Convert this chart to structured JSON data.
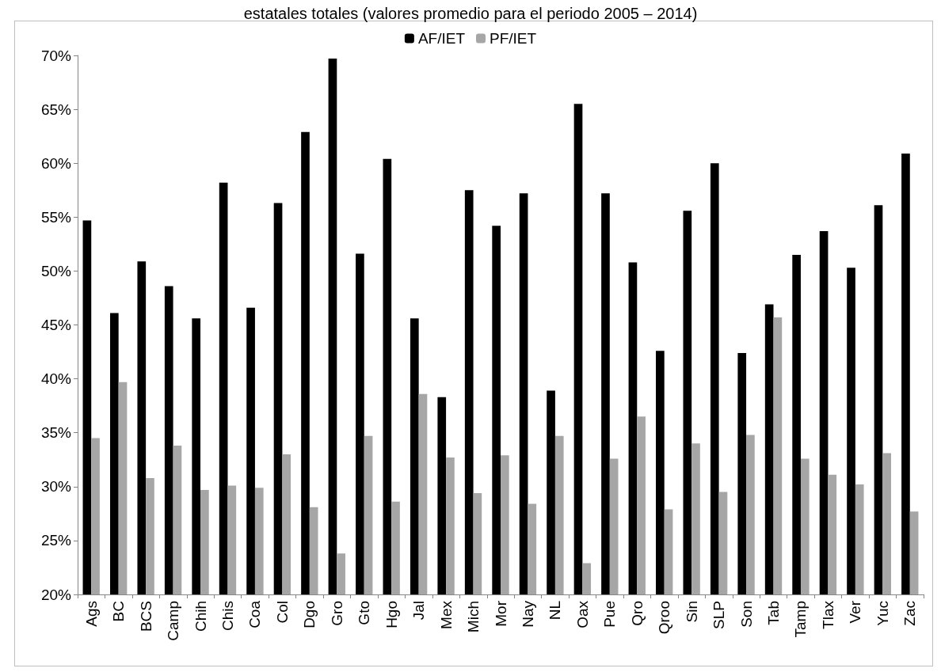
{
  "chart_data": {
    "type": "bar",
    "title": "estatales totales (valores promedio para el periodo 2005 – 2014)",
    "categories": [
      "Ags",
      "BC",
      "BCS",
      "Camp",
      "Chih",
      "Chis",
      "Coa",
      "Col",
      "Dgo",
      "Gro",
      "Gto",
      "Hgo",
      "Jal",
      "Mex",
      "Mich",
      "Mor",
      "Nay",
      "NL",
      "Oax",
      "Pue",
      "Qro",
      "Qroo",
      "Sin",
      "SLP",
      "Son",
      "Tab",
      "Tamp",
      "Tlax",
      "Ver",
      "Yuc",
      "Zac"
    ],
    "series": [
      {
        "name": "AF/IET",
        "color": "#000000",
        "values": [
          54.7,
          46.1,
          50.9,
          48.6,
          45.6,
          58.2,
          46.6,
          56.3,
          62.9,
          69.7,
          51.6,
          60.4,
          45.6,
          38.3,
          57.5,
          54.2,
          57.2,
          38.9,
          65.5,
          57.2,
          50.8,
          42.6,
          55.6,
          60.0,
          42.4,
          46.9,
          51.5,
          53.7,
          50.3,
          56.1,
          60.9
        ]
      },
      {
        "name": "PF/IET",
        "color": "#a6a6a6",
        "values": [
          34.5,
          39.7,
          30.8,
          33.8,
          29.7,
          30.1,
          29.9,
          33.0,
          28.1,
          23.8,
          34.7,
          28.6,
          38.6,
          32.7,
          29.4,
          32.9,
          28.4,
          34.7,
          22.9,
          32.6,
          36.5,
          27.9,
          34.0,
          29.5,
          34.8,
          45.7,
          32.6,
          31.1,
          30.2,
          33.1,
          27.7
        ]
      }
    ],
    "ylim": [
      20,
      70
    ],
    "yticks": [
      {
        "value": 20,
        "label": "20%"
      },
      {
        "value": 25,
        "label": "25%"
      },
      {
        "value": 30,
        "label": "30%"
      },
      {
        "value": 35,
        "label": "35%"
      },
      {
        "value": 40,
        "label": "40%"
      },
      {
        "value": 45,
        "label": "45%"
      },
      {
        "value": 50,
        "label": "50%"
      },
      {
        "value": 55,
        "label": "55%"
      },
      {
        "value": 60,
        "label": "60%"
      },
      {
        "value": 65,
        "label": "65%"
      },
      {
        "value": 70,
        "label": "70%"
      }
    ],
    "grid": false,
    "legend": "top"
  }
}
